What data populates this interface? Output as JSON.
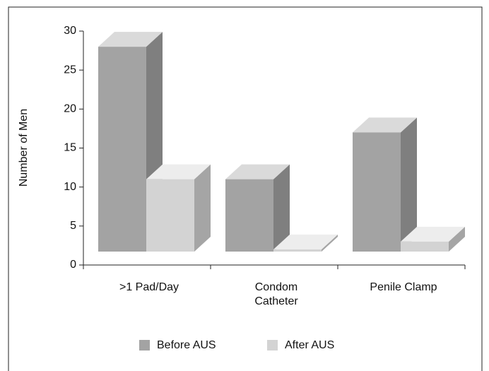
{
  "chart_data": {
    "type": "bar3d",
    "categories": [
      ">1 Pad/Day",
      "Condom Catheter",
      "Penile Clamp"
    ],
    "series": [
      {
        "name": "Before AUS",
        "color": "#a3a3a3",
        "values": [
          28,
          11,
          17
        ]
      },
      {
        "name": "After AUS",
        "color": "#d3d3d3",
        "values": [
          11,
          2,
          3
        ]
      }
    ],
    "y_label": "Number of Men",
    "ylim": [
      0,
      30
    ],
    "yticks": [
      0,
      5,
      10,
      15,
      20,
      25,
      30
    ]
  }
}
